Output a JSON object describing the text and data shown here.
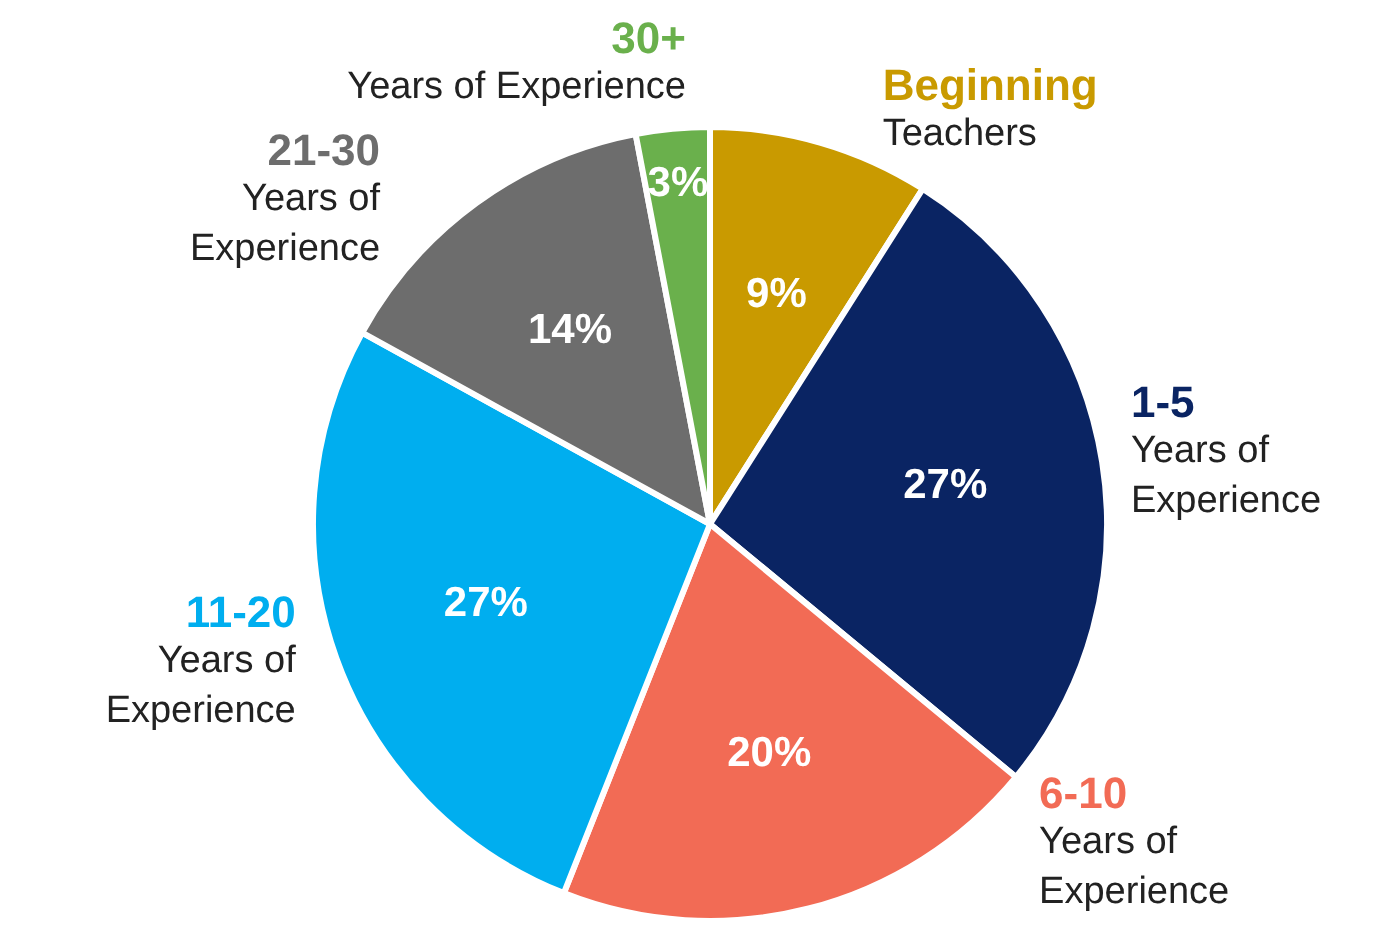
{
  "chart_data": {
    "type": "pie",
    "categories": [
      "Beginning Teachers",
      "1-5 Years of Experience",
      "6-10 Years of Experience",
      "11-20 Years of Experience",
      "21-30 Years of Experience",
      "30+ Years of Experience"
    ],
    "values": [
      9,
      27,
      20,
      27,
      14,
      3
    ],
    "colors": [
      "#c99a00",
      "#0a2463",
      "#f26b55",
      "#00aeef",
      "#6d6d6d",
      "#6ab04c"
    ],
    "value_labels": [
      "9%",
      "27%",
      "20%",
      "27%",
      "14%",
      "3%"
    ],
    "legend": false
  }
}
